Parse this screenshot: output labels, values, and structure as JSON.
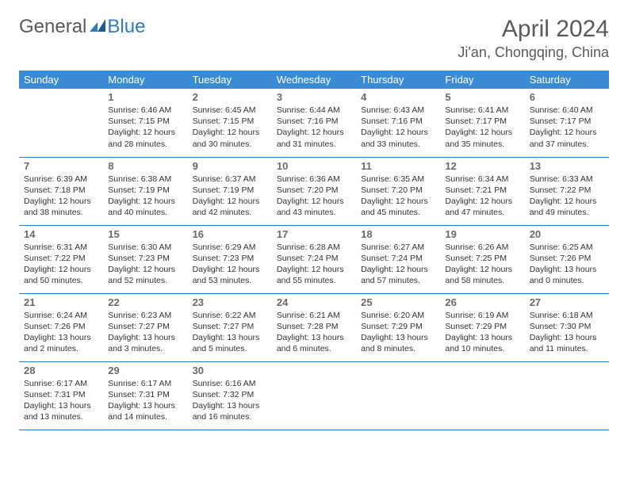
{
  "logo": {
    "text_general": "General",
    "text_blue": "Blue"
  },
  "title": "April 2024",
  "location": "Ji'an, Chongqing, China",
  "colors": {
    "header_bg": "#3b8bd4",
    "header_text": "#ffffff",
    "border": "#2b7cc4",
    "daynum": "#6a6a6a",
    "body_text": "#333333",
    "title_text": "#5a5a5a"
  },
  "weekdays": [
    "Sunday",
    "Monday",
    "Tuesday",
    "Wednesday",
    "Thursday",
    "Friday",
    "Saturday"
  ],
  "weeks": [
    [
      null,
      {
        "n": "1",
        "sr": "Sunrise: 6:46 AM",
        "ss": "Sunset: 7:15 PM",
        "dl1": "Daylight: 12 hours",
        "dl2": "and 28 minutes."
      },
      {
        "n": "2",
        "sr": "Sunrise: 6:45 AM",
        "ss": "Sunset: 7:15 PM",
        "dl1": "Daylight: 12 hours",
        "dl2": "and 30 minutes."
      },
      {
        "n": "3",
        "sr": "Sunrise: 6:44 AM",
        "ss": "Sunset: 7:16 PM",
        "dl1": "Daylight: 12 hours",
        "dl2": "and 31 minutes."
      },
      {
        "n": "4",
        "sr": "Sunrise: 6:43 AM",
        "ss": "Sunset: 7:16 PM",
        "dl1": "Daylight: 12 hours",
        "dl2": "and 33 minutes."
      },
      {
        "n": "5",
        "sr": "Sunrise: 6:41 AM",
        "ss": "Sunset: 7:17 PM",
        "dl1": "Daylight: 12 hours",
        "dl2": "and 35 minutes."
      },
      {
        "n": "6",
        "sr": "Sunrise: 6:40 AM",
        "ss": "Sunset: 7:17 PM",
        "dl1": "Daylight: 12 hours",
        "dl2": "and 37 minutes."
      }
    ],
    [
      {
        "n": "7",
        "sr": "Sunrise: 6:39 AM",
        "ss": "Sunset: 7:18 PM",
        "dl1": "Daylight: 12 hours",
        "dl2": "and 38 minutes."
      },
      {
        "n": "8",
        "sr": "Sunrise: 6:38 AM",
        "ss": "Sunset: 7:19 PM",
        "dl1": "Daylight: 12 hours",
        "dl2": "and 40 minutes."
      },
      {
        "n": "9",
        "sr": "Sunrise: 6:37 AM",
        "ss": "Sunset: 7:19 PM",
        "dl1": "Daylight: 12 hours",
        "dl2": "and 42 minutes."
      },
      {
        "n": "10",
        "sr": "Sunrise: 6:36 AM",
        "ss": "Sunset: 7:20 PM",
        "dl1": "Daylight: 12 hours",
        "dl2": "and 43 minutes."
      },
      {
        "n": "11",
        "sr": "Sunrise: 6:35 AM",
        "ss": "Sunset: 7:20 PM",
        "dl1": "Daylight: 12 hours",
        "dl2": "and 45 minutes."
      },
      {
        "n": "12",
        "sr": "Sunrise: 6:34 AM",
        "ss": "Sunset: 7:21 PM",
        "dl1": "Daylight: 12 hours",
        "dl2": "and 47 minutes."
      },
      {
        "n": "13",
        "sr": "Sunrise: 6:33 AM",
        "ss": "Sunset: 7:22 PM",
        "dl1": "Daylight: 12 hours",
        "dl2": "and 49 minutes."
      }
    ],
    [
      {
        "n": "14",
        "sr": "Sunrise: 6:31 AM",
        "ss": "Sunset: 7:22 PM",
        "dl1": "Daylight: 12 hours",
        "dl2": "and 50 minutes."
      },
      {
        "n": "15",
        "sr": "Sunrise: 6:30 AM",
        "ss": "Sunset: 7:23 PM",
        "dl1": "Daylight: 12 hours",
        "dl2": "and 52 minutes."
      },
      {
        "n": "16",
        "sr": "Sunrise: 6:29 AM",
        "ss": "Sunset: 7:23 PM",
        "dl1": "Daylight: 12 hours",
        "dl2": "and 53 minutes."
      },
      {
        "n": "17",
        "sr": "Sunrise: 6:28 AM",
        "ss": "Sunset: 7:24 PM",
        "dl1": "Daylight: 12 hours",
        "dl2": "and 55 minutes."
      },
      {
        "n": "18",
        "sr": "Sunrise: 6:27 AM",
        "ss": "Sunset: 7:24 PM",
        "dl1": "Daylight: 12 hours",
        "dl2": "and 57 minutes."
      },
      {
        "n": "19",
        "sr": "Sunrise: 6:26 AM",
        "ss": "Sunset: 7:25 PM",
        "dl1": "Daylight: 12 hours",
        "dl2": "and 58 minutes."
      },
      {
        "n": "20",
        "sr": "Sunrise: 6:25 AM",
        "ss": "Sunset: 7:26 PM",
        "dl1": "Daylight: 13 hours",
        "dl2": "and 0 minutes."
      }
    ],
    [
      {
        "n": "21",
        "sr": "Sunrise: 6:24 AM",
        "ss": "Sunset: 7:26 PM",
        "dl1": "Daylight: 13 hours",
        "dl2": "and 2 minutes."
      },
      {
        "n": "22",
        "sr": "Sunrise: 6:23 AM",
        "ss": "Sunset: 7:27 PM",
        "dl1": "Daylight: 13 hours",
        "dl2": "and 3 minutes."
      },
      {
        "n": "23",
        "sr": "Sunrise: 6:22 AM",
        "ss": "Sunset: 7:27 PM",
        "dl1": "Daylight: 13 hours",
        "dl2": "and 5 minutes."
      },
      {
        "n": "24",
        "sr": "Sunrise: 6:21 AM",
        "ss": "Sunset: 7:28 PM",
        "dl1": "Daylight: 13 hours",
        "dl2": "and 6 minutes."
      },
      {
        "n": "25",
        "sr": "Sunrise: 6:20 AM",
        "ss": "Sunset: 7:29 PM",
        "dl1": "Daylight: 13 hours",
        "dl2": "and 8 minutes."
      },
      {
        "n": "26",
        "sr": "Sunrise: 6:19 AM",
        "ss": "Sunset: 7:29 PM",
        "dl1": "Daylight: 13 hours",
        "dl2": "and 10 minutes."
      },
      {
        "n": "27",
        "sr": "Sunrise: 6:18 AM",
        "ss": "Sunset: 7:30 PM",
        "dl1": "Daylight: 13 hours",
        "dl2": "and 11 minutes."
      }
    ],
    [
      {
        "n": "28",
        "sr": "Sunrise: 6:17 AM",
        "ss": "Sunset: 7:31 PM",
        "dl1": "Daylight: 13 hours",
        "dl2": "and 13 minutes."
      },
      {
        "n": "29",
        "sr": "Sunrise: 6:17 AM",
        "ss": "Sunset: 7:31 PM",
        "dl1": "Daylight: 13 hours",
        "dl2": "and 14 minutes."
      },
      {
        "n": "30",
        "sr": "Sunrise: 6:16 AM",
        "ss": "Sunset: 7:32 PM",
        "dl1": "Daylight: 13 hours",
        "dl2": "and 16 minutes."
      },
      null,
      null,
      null,
      null
    ]
  ]
}
